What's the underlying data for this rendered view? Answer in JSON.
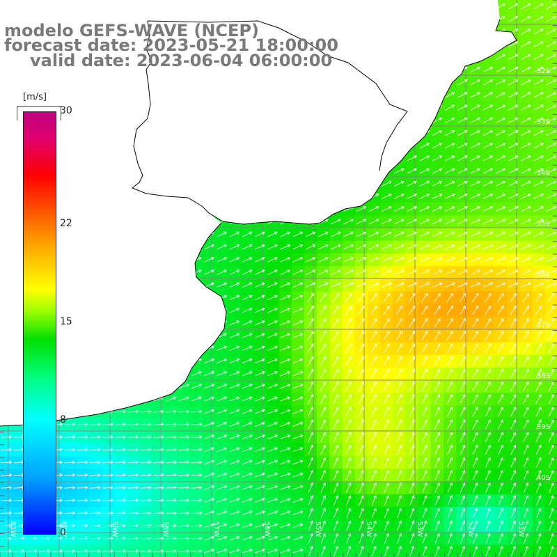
{
  "header": {
    "line1": "modelo GEFS-WAVE (NCEP)",
    "line2": "forecast date: 2023-05-21 18:00:00",
    "line3": "valid date: 2023-06-04 06:00:00"
  },
  "colorbar": {
    "unit": "[m/s]",
    "ticks": [
      {
        "label": "30",
        "value": 30
      },
      {
        "label": "22",
        "value": 22
      },
      {
        "label": "15",
        "value": 15
      },
      {
        "label": "8",
        "value": 8
      },
      {
        "label": "0",
        "value": 0
      }
    ],
    "colors": [
      "#0000ff",
      "#00ffff",
      "#00e000",
      "#ffff00",
      "#ff5000",
      "#ff0000",
      "#c00080"
    ]
  },
  "lat_labels": [
    "32S",
    "33S",
    "34S",
    "35S",
    "36S",
    "37S",
    "38S",
    "39S",
    "40S"
  ],
  "lon_labels": [
    "61W",
    "60W",
    "59W",
    "58W",
    "57W",
    "56W",
    "55W",
    "54W",
    "53W",
    "52W",
    "51W"
  ],
  "land_color": "#ffffff",
  "grid_color": "#888888"
}
